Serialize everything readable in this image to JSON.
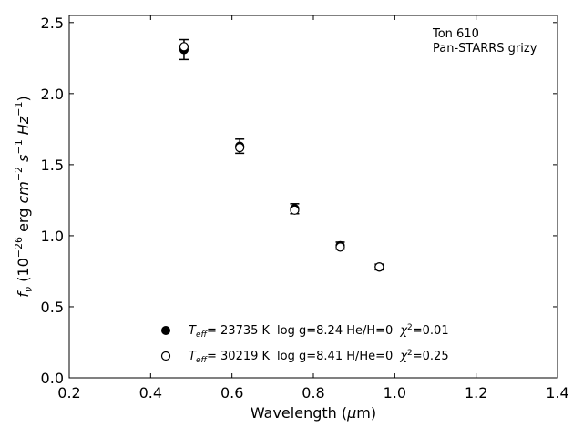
{
  "chart_data": {
    "type": "scatter",
    "xlabel": "Wavelength (μm)",
    "ylabel": "f_ν (10^−26 erg cm^−2 s^−1 Hz^−1)",
    "xlim": [
      0.2,
      1.4
    ],
    "ylim": [
      0.0,
      2.55
    ],
    "xticks": [
      "0.2",
      "0.4",
      "0.6",
      "0.8",
      "1.0",
      "1.2",
      "1.4"
    ],
    "yticks": [
      "0.0",
      "0.5",
      "1.0",
      "1.5",
      "2.0",
      "2.5"
    ],
    "grid": false,
    "annotation": [
      "Ton 610",
      "Pan-STARRS grizy"
    ],
    "observed": {
      "x": [
        0.482,
        0.619,
        0.754,
        0.866,
        0.962
      ],
      "y": [
        2.31,
        1.63,
        1.19,
        0.93,
        0.78
      ],
      "err": [
        0.07,
        0.05,
        0.035,
        0.025,
        0.02
      ]
    },
    "series": [
      {
        "marker": "filled-circle",
        "x": [
          0.482,
          0.619,
          0.754,
          0.866,
          0.962
        ],
        "y": [
          2.31,
          1.63,
          1.19,
          0.93,
          0.78
        ],
        "legend": {
          "teff": "= 23735 K",
          "rest": "log g=8.24  He/H=0",
          "chi_val": "=0.01"
        }
      },
      {
        "marker": "open-circle",
        "x": [
          0.482,
          0.619,
          0.754,
          0.866,
          0.962
        ],
        "y": [
          2.33,
          1.62,
          1.18,
          0.92,
          0.78
        ],
        "legend": {
          "teff": "= 30219 K",
          "rest": "log g=8.41  H/He=0",
          "chi_val": "=0.25"
        }
      }
    ],
    "legend_position": "lower-center"
  }
}
